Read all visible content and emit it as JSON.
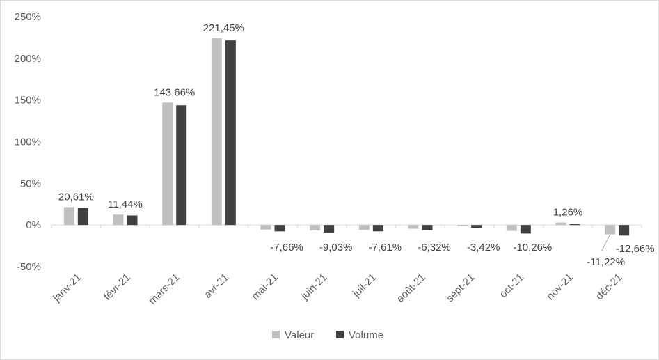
{
  "chart_data": {
    "type": "bar",
    "categories": [
      "janv-21",
      "févr-21",
      "mars-21",
      "avr-21",
      "mai-21",
      "juin-21",
      "juil-21",
      "août-21",
      "sept-21",
      "oct-21",
      "nov-21",
      "déc-21"
    ],
    "series": [
      {
        "name": "Valeur",
        "color": "#bfbfbf",
        "values": [
          21.5,
          12.5,
          147.0,
          224.0,
          -5.5,
          -6.5,
          -6.0,
          -4.5,
          -1.5,
          -7.0,
          3.0,
          -11.22
        ],
        "labels": [
          "",
          "",
          "",
          "",
          "",
          "",
          "",
          "",
          "",
          "",
          "",
          "-11,22%"
        ]
      },
      {
        "name": "Volume",
        "color": "#404040",
        "values": [
          20.61,
          11.44,
          143.66,
          221.45,
          -7.66,
          -9.03,
          -7.61,
          -6.32,
          -3.42,
          -10.26,
          1.26,
          -12.66
        ],
        "labels": [
          "20,61%",
          "11,44%",
          "143,66%",
          "221,45%",
          "-7,66%",
          "-9,03%",
          "-7,61%",
          "-6,32%",
          "-3,42%",
          "-10,26%",
          "1,26%",
          "-12,66%"
        ]
      }
    ],
    "y_ticks": [
      "-50%",
      "0%",
      "50%",
      "100%",
      "150%",
      "200%",
      "250%"
    ],
    "ylim": [
      -50,
      250
    ],
    "grid": false,
    "legend": "bottom",
    "title": "",
    "xlabel": "",
    "ylabel": ""
  }
}
